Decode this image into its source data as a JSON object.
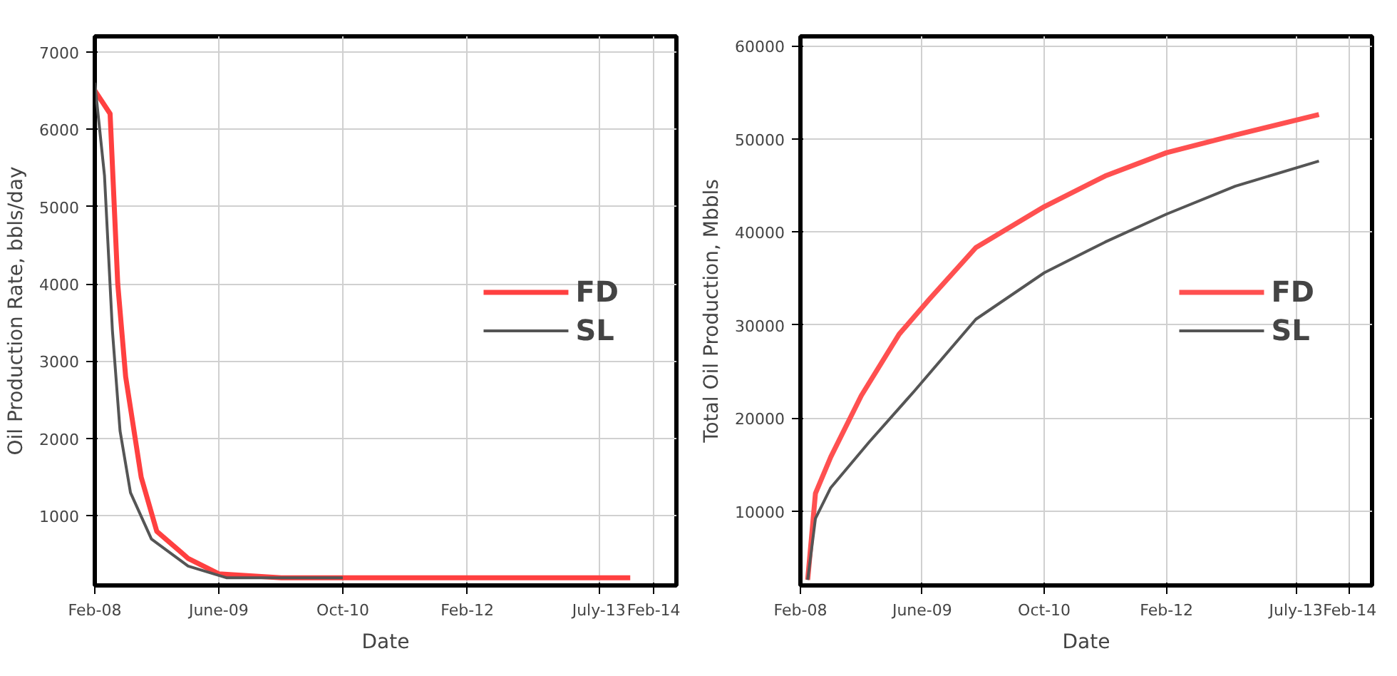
{
  "chart_data": [
    {
      "type": "line",
      "xlabel": "Date",
      "ylabel": "Oil Production Rate, bbls/day",
      "xlim": [
        "2008-02",
        "2014-05"
      ],
      "ylim": [
        100,
        7200
      ],
      "xticks": [
        {
          "value": "2008-02",
          "label": "Feb-08"
        },
        {
          "value": "2009-06",
          "label": "June-09"
        },
        {
          "value": "2010-10",
          "label": "Oct-10"
        },
        {
          "value": "2012-02",
          "label": "Feb-12"
        },
        {
          "value": "2013-07",
          "label": "July-13"
        },
        {
          "value": "2014-02",
          "label": "Feb-14"
        }
      ],
      "yticks": [
        1000,
        2000,
        3000,
        4000,
        5000,
        6000,
        7000
      ],
      "grid": true,
      "legend": "center right",
      "marker": "none",
      "line_style": "solid",
      "series": [
        {
          "name": "FD",
          "color": "#ff4040",
          "x": [
            "2008-02",
            "2008-04",
            "2008-05",
            "2008-06",
            "2008-08",
            "2008-10",
            "2009-02",
            "2009-06",
            "2010-02",
            "2013-11"
          ],
          "values": [
            6500,
            6200,
            4000,
            2800,
            1500,
            800,
            450,
            250,
            200,
            200
          ]
        },
        {
          "name": "SL",
          "color": "#555555",
          "x": [
            "2008-02",
            "2008-03-10",
            "2008-04-10",
            "2008-05-10",
            "2008-06-20",
            "2008-09-10",
            "2009-02",
            "2009-07",
            "2010-02",
            "2010-10"
          ],
          "values": [
            6600,
            5400,
            3400,
            2100,
            1300,
            700,
            350,
            200,
            200,
            200
          ]
        }
      ]
    },
    {
      "type": "line",
      "xlabel": "Date",
      "ylabel": "Total Oil Production, Mbbls",
      "xlim": [
        "2008-02",
        "2014-05"
      ],
      "ylim": [
        2000,
        61000
      ],
      "xticks": [
        {
          "value": "2008-02",
          "label": "Feb-08"
        },
        {
          "value": "2009-06",
          "label": "June-09"
        },
        {
          "value": "2010-10",
          "label": "Oct-10"
        },
        {
          "value": "2012-02",
          "label": "Feb-12"
        },
        {
          "value": "2013-07",
          "label": "July-13"
        },
        {
          "value": "2014-02",
          "label": "Feb-14"
        }
      ],
      "yticks": [
        10000,
        20000,
        30000,
        40000,
        50000,
        60000
      ],
      "grid": true,
      "legend": "center right",
      "marker": "none",
      "line_style": "solid",
      "series": [
        {
          "name": "FD",
          "color": "#ff5050",
          "x": [
            "2008-03",
            "2008-04",
            "2008-06",
            "2008-10",
            "2009-03",
            "2009-07",
            "2010-01",
            "2010-10",
            "2011-06",
            "2012-02",
            "2012-11",
            "2013-10"
          ],
          "values": [
            2600,
            11900,
            15800,
            22400,
            29000,
            32800,
            38300,
            42700,
            46000,
            48500,
            50400,
            52600
          ]
        },
        {
          "name": "SL",
          "color": "#555555",
          "x": [
            "2008-03",
            "2008-04",
            "2008-06",
            "2008-11",
            "2009-05",
            "2010-01",
            "2010-10",
            "2011-06",
            "2012-02",
            "2012-11",
            "2013-10"
          ],
          "values": [
            2600,
            9200,
            12500,
            17400,
            22900,
            30600,
            35600,
            38900,
            41900,
            44900,
            47600
          ]
        }
      ]
    }
  ]
}
